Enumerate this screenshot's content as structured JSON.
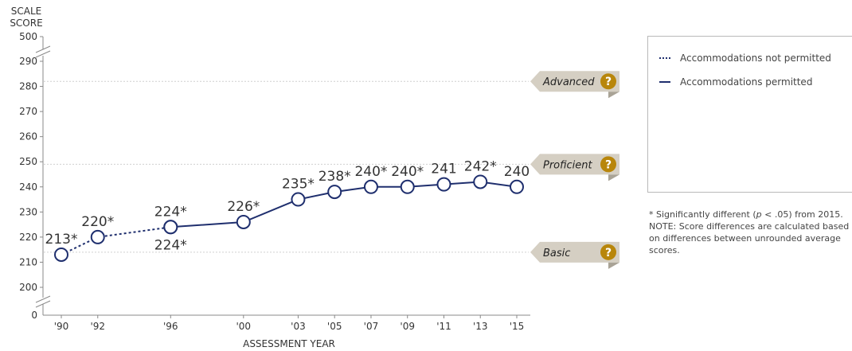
{
  "chart_data": {
    "type": "line",
    "ylabel_line1": "SCALE",
    "ylabel_line2": "SCORE",
    "xlabel": "ASSESSMENT YEAR",
    "ylim": [
      200,
      290
    ],
    "y_top_tick": "500",
    "y_bottom_tick": "0",
    "y_ticks": [
      200,
      210,
      220,
      230,
      240,
      250,
      260,
      270,
      280,
      290
    ],
    "categories": [
      "'90",
      "'92",
      "'96",
      "'00",
      "'03",
      "'05",
      "'07",
      "'09",
      "'11",
      "'13",
      "'15"
    ],
    "series": [
      {
        "name": "Accommodations not permitted",
        "style": "dotted",
        "x": [
          "'90",
          "'92",
          "'96"
        ],
        "values": [
          213,
          220,
          224
        ],
        "labels": [
          "213*",
          "220*",
          "224*"
        ]
      },
      {
        "name": "Accommodations permitted",
        "style": "solid",
        "x": [
          "'96",
          "'00",
          "'03",
          "'05",
          "'07",
          "'09",
          "'11",
          "'13",
          "'15"
        ],
        "values": [
          224,
          226,
          235,
          238,
          240,
          240,
          241,
          242,
          240
        ],
        "labels": [
          "224*",
          "226*",
          "235*",
          "238*",
          "240*",
          "240*",
          "241",
          "242*",
          "240"
        ]
      }
    ],
    "achievement_levels": [
      {
        "name": "Advanced",
        "value": 282
      },
      {
        "name": "Proficient",
        "value": 249
      },
      {
        "name": "Basic",
        "value": 214
      }
    ],
    "help_icon": "question-mark-icon",
    "colors": {
      "series": "#1f2f6e",
      "badge": "#d5cfc3",
      "help": "#b8860b",
      "gridline": "#cfcfcf"
    }
  },
  "notes": {
    "significance_prefix": "* Significantly different (",
    "significance_p": "p",
    "significance_suffix": " < .05) from 2015.",
    "note": "NOTE: Score differences are calculated based on differences between unrounded average scores."
  }
}
